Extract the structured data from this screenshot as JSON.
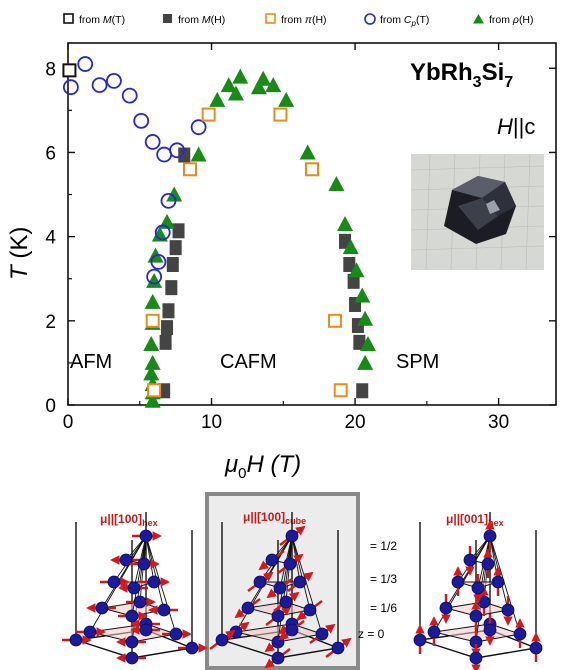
{
  "colors": {
    "afm_Cp": "#2727d6",
    "M_T": "#111111",
    "M_H": "#444444",
    "pi_H": "#ea8a1f",
    "rho_H": "#178a17",
    "moment_arrow": "#d21a1a",
    "atom": "#1a1a9a",
    "panel_bg": "#ececec"
  },
  "chart_data": {
    "type": "scatter",
    "title": "YbRh₃Si₇",
    "subtitle": "H||c",
    "xlabel": "μ₀H (T)",
    "ylabel": "T (K)",
    "xlim": [
      0,
      34
    ],
    "ylim": [
      0,
      8.6
    ],
    "xticks": [
      "0",
      "10",
      "20",
      "30"
    ],
    "yticks": [
      "0",
      "2",
      "4",
      "6",
      "8"
    ],
    "grid": false,
    "legend_position": "top",
    "series": [
      {
        "name": "from M(T)",
        "marker": "open-square",
        "color": "#111111",
        "points": [
          [
            0.1,
            7.95
          ]
        ]
      },
      {
        "name": "from M(H)",
        "marker": "filled-square",
        "color": "#444444",
        "points": [
          [
            8.1,
            5.95
          ],
          [
            7.7,
            4.15
          ],
          [
            7.5,
            3.75
          ],
          [
            7.3,
            3.35
          ],
          [
            7.2,
            2.8
          ],
          [
            7.0,
            2.25
          ],
          [
            6.9,
            1.85
          ],
          [
            6.8,
            1.5
          ],
          [
            6.7,
            0.35
          ],
          [
            19.3,
            3.9
          ],
          [
            19.6,
            3.35
          ],
          [
            19.9,
            2.95
          ],
          [
            20.0,
            2.4
          ],
          [
            20.2,
            1.9
          ],
          [
            20.3,
            1.5
          ],
          [
            20.5,
            0.35
          ]
        ]
      },
      {
        "name": "from π(H)",
        "marker": "open-square",
        "color": "#ea8a1f",
        "points": [
          [
            6.0,
            0.35
          ],
          [
            5.9,
            2.0
          ],
          [
            8.5,
            5.6
          ],
          [
            9.8,
            6.9
          ],
          [
            14.8,
            6.9
          ],
          [
            17.0,
            5.6
          ],
          [
            18.6,
            2.0
          ],
          [
            19.0,
            0.35
          ]
        ]
      },
      {
        "name": "from Cp(T)",
        "marker": "open-circle",
        "color": "#2727d6",
        "points": [
          [
            0.2,
            7.55
          ],
          [
            1.2,
            8.1
          ],
          [
            2.2,
            7.6
          ],
          [
            3.2,
            7.7
          ],
          [
            4.3,
            7.35
          ],
          [
            5.1,
            6.75
          ],
          [
            5.9,
            6.25
          ],
          [
            6.7,
            5.95
          ],
          [
            7.6,
            6.05
          ],
          [
            7.0,
            4.85
          ],
          [
            6.6,
            4.1
          ],
          [
            6.3,
            3.4
          ],
          [
            6.0,
            3.05
          ],
          [
            9.1,
            6.6
          ]
        ]
      },
      {
        "name": "from ρ(H)",
        "marker": "filled-triangle",
        "color": "#178a17",
        "points": [
          [
            5.9,
            0.1
          ],
          [
            5.9,
            0.3
          ],
          [
            5.9,
            0.5
          ],
          [
            5.8,
            0.75
          ],
          [
            5.9,
            1.0
          ],
          [
            5.8,
            1.45
          ],
          [
            5.9,
            1.95
          ],
          [
            5.9,
            2.45
          ],
          [
            6.0,
            2.95
          ],
          [
            6.1,
            3.55
          ],
          [
            6.4,
            4.05
          ],
          [
            6.9,
            4.35
          ],
          [
            7.4,
            5.0
          ],
          [
            9.1,
            5.95
          ],
          [
            10.4,
            7.25
          ],
          [
            11.2,
            7.6
          ],
          [
            11.7,
            7.4
          ],
          [
            12.0,
            7.8
          ],
          [
            13.3,
            7.55
          ],
          [
            14.3,
            7.6
          ],
          [
            13.6,
            7.75
          ],
          [
            15.2,
            7.25
          ],
          [
            16.7,
            6.0
          ],
          [
            18.7,
            5.25
          ],
          [
            19.3,
            4.3
          ],
          [
            19.7,
            3.75
          ],
          [
            20.1,
            3.2
          ],
          [
            20.5,
            2.6
          ],
          [
            20.7,
            2.05
          ],
          [
            20.9,
            1.45
          ],
          [
            20.7,
            1.0
          ]
        ]
      }
    ],
    "annotations": [
      "AFM",
      "CAFM",
      "SPM"
    ]
  },
  "phase_labels": {
    "afm": "AFM",
    "cafm": "CAFM",
    "spm": "SPM"
  },
  "legend": [
    {
      "prefix": "from ",
      "var": "M",
      "arg": "(T)",
      "sub": ""
    },
    {
      "prefix": "from ",
      "var": "M",
      "arg": "(H)",
      "sub": ""
    },
    {
      "prefix": "from ",
      "var": "π",
      "arg": "(H)",
      "sub": ""
    },
    {
      "prefix": "from ",
      "var": "C",
      "arg": "(T)",
      "sub": "p"
    },
    {
      "prefix": "from ",
      "var": "ρ",
      "arg": "(H)",
      "sub": ""
    }
  ],
  "compound": {
    "main": "YbRh",
    "sub1": "3",
    "mid": "Si",
    "sub2": "7"
  },
  "field_direction": {
    "a": "H",
    "b": "||c"
  },
  "axes": {
    "x_label_mu": "μ",
    "x_label_sub": "0",
    "x_label_rest": "H (T)",
    "y_label_T": "T",
    "y_label_rest": " (K)"
  },
  "structures": [
    {
      "prefix": "μ||[100]",
      "sub": "hex"
    },
    {
      "prefix": "μ||[100]",
      "sub": "cube"
    },
    {
      "prefix": "μ||[001]",
      "sub": "hex"
    }
  ],
  "layer_labels": [
    "= 1/2",
    "= 1/3",
    "= 1/6",
    "z = 0"
  ]
}
